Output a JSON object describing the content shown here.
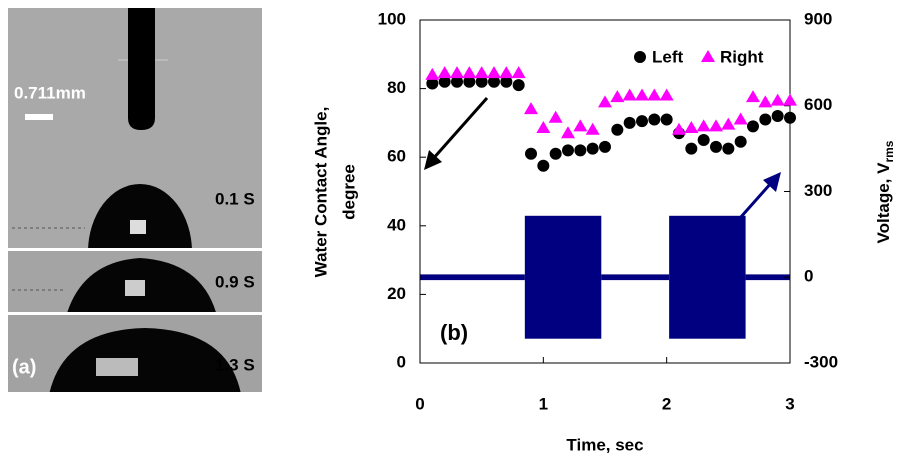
{
  "panel_a": {
    "label": "(a)",
    "scale_label": "0.711mm",
    "frame_labels": [
      "0.1 S",
      "0.9 S",
      "1.3 S"
    ]
  },
  "chart_data": {
    "type": "scatter",
    "panel_label": "(b)",
    "xlabel": "Time, sec",
    "ylabel": [
      "Water Contact Angle,",
      "degree"
    ],
    "y2label": {
      "text": "Voltage, V",
      "subscript": "rms"
    },
    "xlim": [
      0,
      3
    ],
    "xticks": [
      0,
      1,
      2,
      3
    ],
    "ylim": [
      0,
      100
    ],
    "yticks": [
      0,
      20,
      40,
      60,
      80,
      100
    ],
    "y2lim": [
      -300,
      900
    ],
    "y2ticks": [
      -300,
      0,
      300,
      600,
      900
    ],
    "legend": "upper right",
    "x": [
      0.1,
      0.2,
      0.3,
      0.4,
      0.5,
      0.6,
      0.7,
      0.8,
      0.9,
      1.0,
      1.1,
      1.2,
      1.3,
      1.4,
      1.5,
      1.6,
      1.7,
      1.8,
      1.9,
      2.0,
      2.1,
      2.2,
      2.3,
      2.4,
      2.5,
      2.6,
      2.7,
      2.8,
      2.9,
      3.0
    ],
    "series": [
      {
        "name": "Left",
        "color": "#000000",
        "marker": "circle",
        "values": [
          81.5,
          82,
          82,
          82,
          82,
          82,
          82,
          81,
          61,
          57.5,
          61,
          62,
          62,
          62.5,
          63,
          68,
          70,
          70.5,
          71,
          71,
          67,
          62.5,
          65,
          63,
          62.5,
          64.5,
          69,
          71,
          72,
          71.5
        ]
      },
      {
        "name": "Right",
        "color": "#ff00ff",
        "marker": "triangle",
        "values": [
          84,
          84.5,
          84.5,
          84.5,
          84.5,
          84.5,
          84.5,
          84.5,
          74,
          68.5,
          71.5,
          67,
          69,
          68,
          76,
          77.5,
          78,
          78,
          78,
          78,
          68,
          68.5,
          69,
          69,
          69.5,
          71,
          77.5,
          76,
          76.5,
          76.5
        ]
      }
    ],
    "voltage": {
      "axis": "y2",
      "color": "#000080",
      "segments": [
        {
          "x": [
            0,
            0.85
          ],
          "amplitude": 10
        },
        {
          "x": [
            0.85,
            1.47
          ],
          "amplitude": 215
        },
        {
          "x": [
            1.47,
            2.02
          ],
          "amplitude": 10
        },
        {
          "x": [
            2.02,
            2.64
          ],
          "amplitude": 215
        },
        {
          "x": [
            2.64,
            3.0
          ],
          "amplitude": 10
        }
      ]
    }
  }
}
